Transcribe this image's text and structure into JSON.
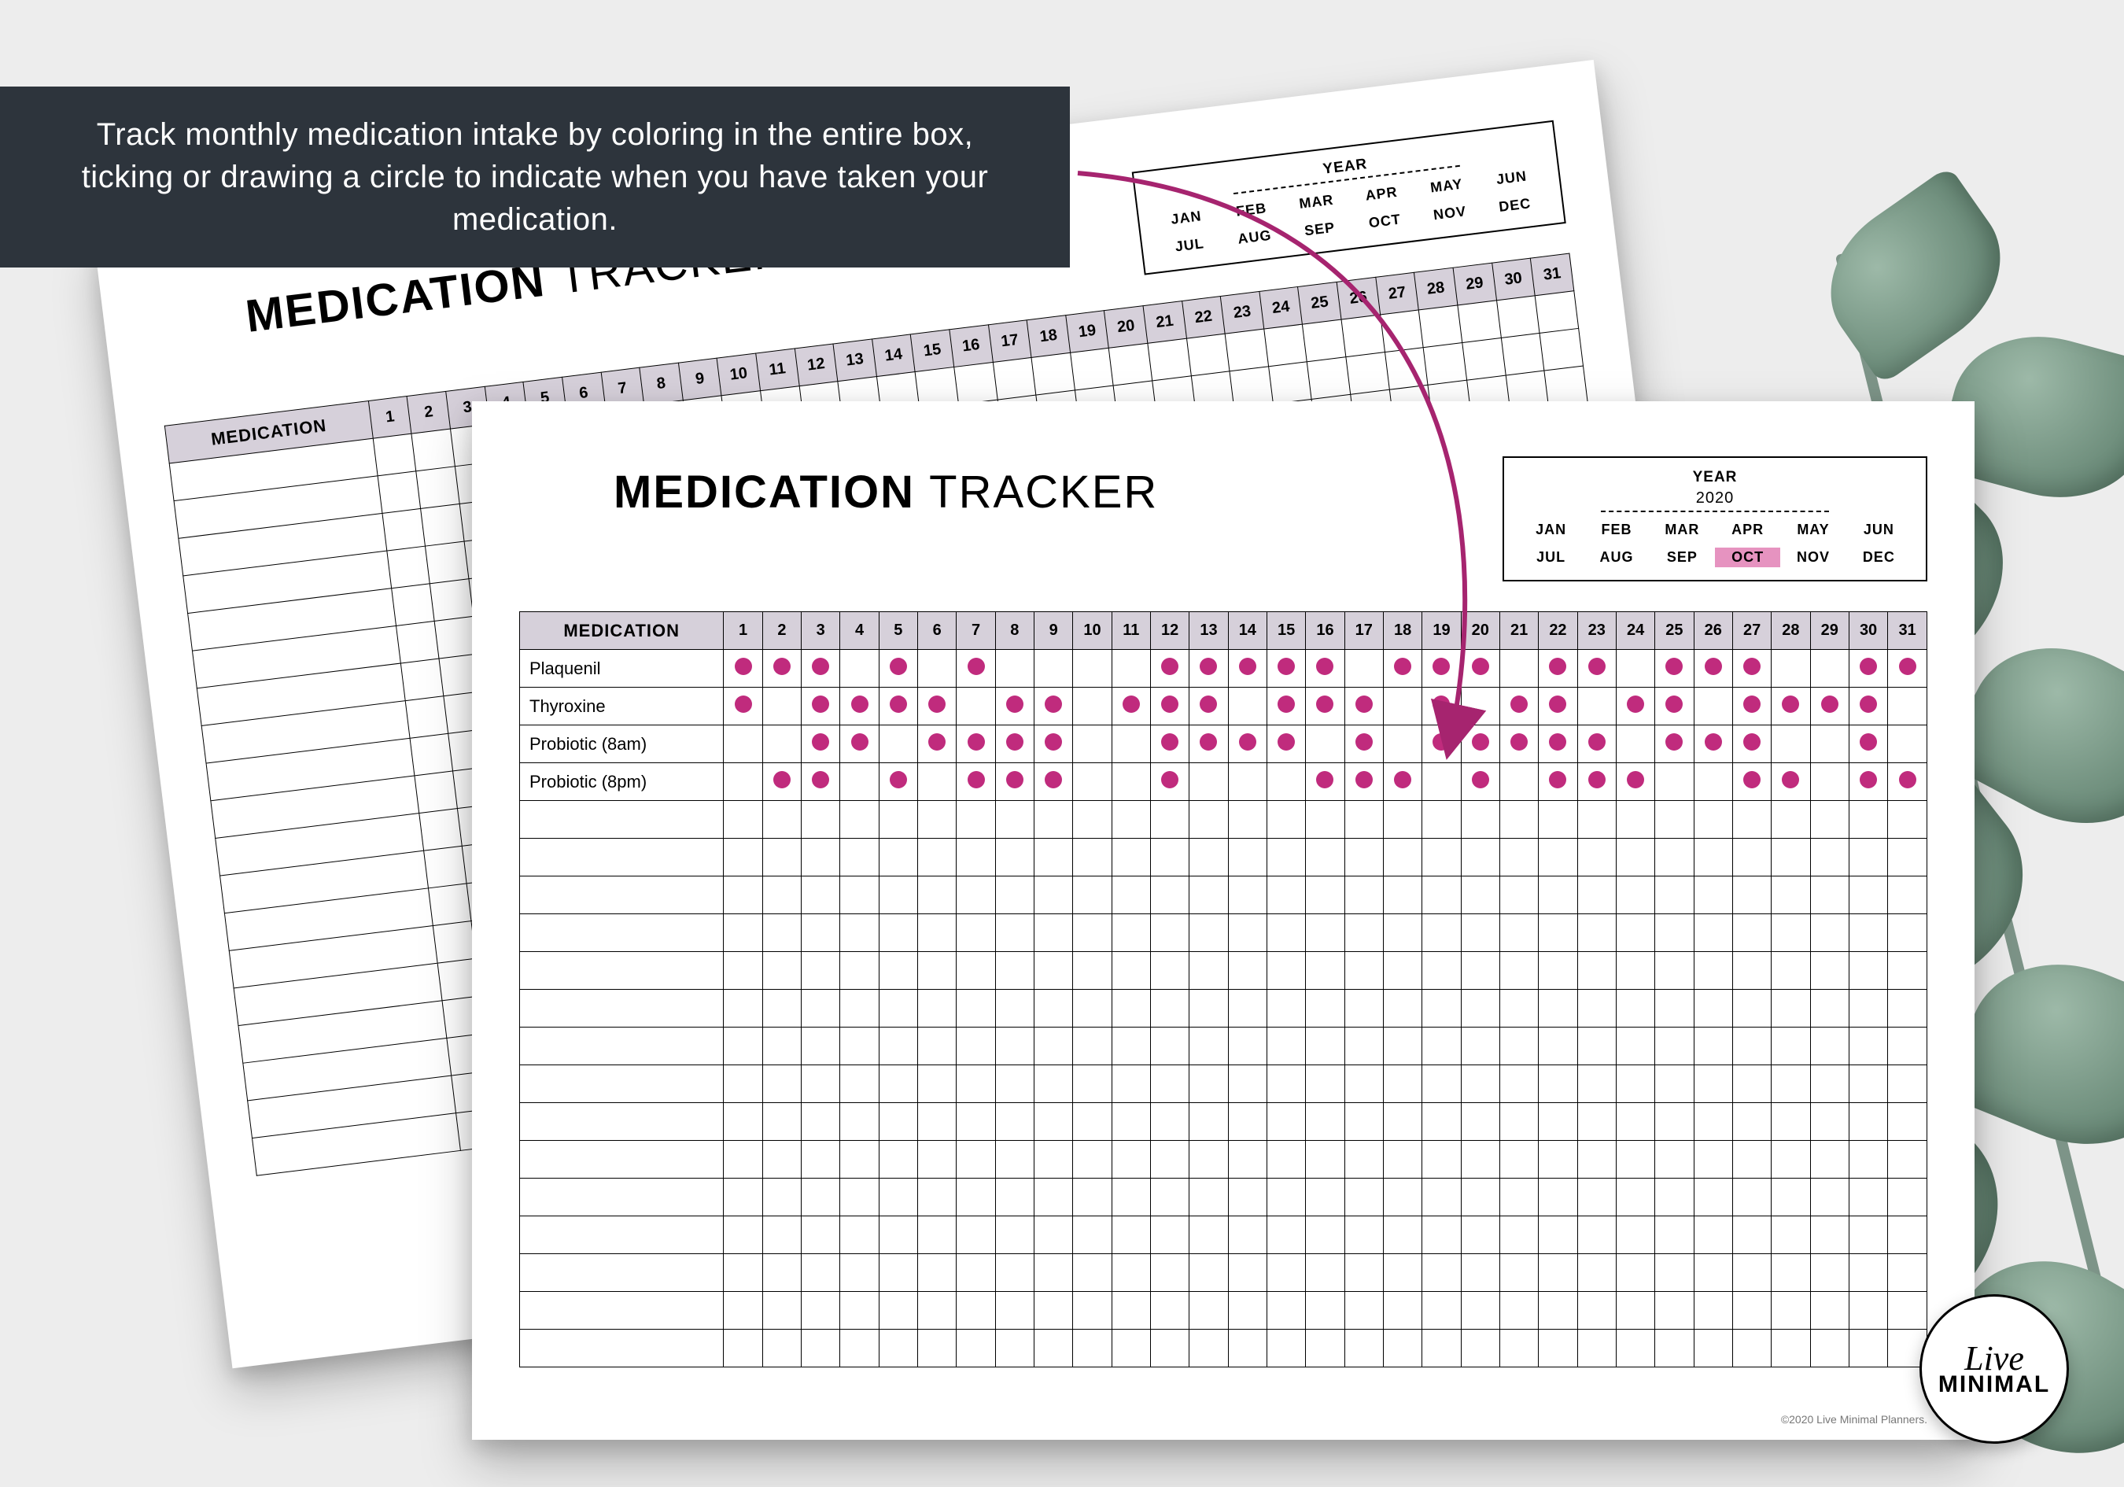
{
  "banner_text": "Track monthly medication intake by coloring in the entire box, ticking or drawing a circle to indicate when you have taken your medication.",
  "title_bold": "MEDICATION",
  "title_light": "TRACKER",
  "year_label": "YEAR",
  "year_value": "2020",
  "months": [
    "JAN",
    "FEB",
    "MAR",
    "APR",
    "MAY",
    "JUN",
    "JUL",
    "AUG",
    "SEP",
    "OCT",
    "NOV",
    "DEC"
  ],
  "selected_month": "OCT",
  "medication_header": "MEDICATION",
  "days": 31,
  "total_rows": 19,
  "dot_color": "#c02b7d",
  "arrow_color": "#a6246f",
  "rows": [
    {
      "name": "Plaquenil",
      "dots": [
        1,
        2,
        3,
        5,
        7,
        12,
        13,
        14,
        15,
        16,
        18,
        19,
        20,
        22,
        23,
        25,
        26,
        27,
        30,
        31
      ]
    },
    {
      "name": "Thyroxine",
      "dots": [
        1,
        3,
        4,
        5,
        6,
        8,
        9,
        11,
        12,
        13,
        15,
        16,
        17,
        19,
        21,
        22,
        24,
        25,
        27,
        28,
        29,
        30
      ]
    },
    {
      "name": "Probiotic (8am)",
      "dots": [
        3,
        4,
        6,
        7,
        8,
        9,
        12,
        13,
        14,
        15,
        17,
        19,
        20,
        21,
        22,
        23,
        25,
        26,
        27,
        30
      ]
    },
    {
      "name": "Probiotic (8pm)",
      "dots": [
        2,
        3,
        5,
        7,
        8,
        9,
        12,
        16,
        17,
        18,
        20,
        22,
        23,
        24,
        27,
        28,
        30,
        31
      ]
    }
  ],
  "copyright": "©2020 Live Minimal Planners.",
  "logo_line1": "Live",
  "logo_line2": "MINIMAL"
}
